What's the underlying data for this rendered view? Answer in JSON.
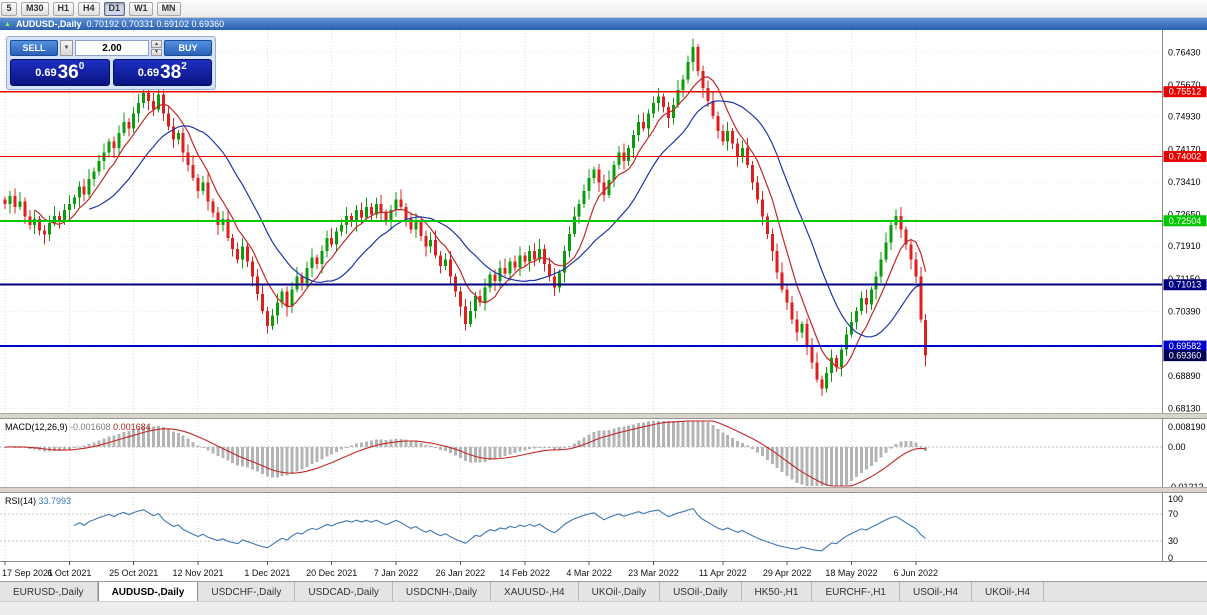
{
  "toolbar": {
    "timeframes": [
      {
        "label": "5",
        "active": false
      },
      {
        "label": "M30",
        "active": false
      },
      {
        "label": "H1",
        "active": false
      },
      {
        "label": "H4",
        "active": false
      },
      {
        "label": "D1",
        "active": true
      },
      {
        "label": "W1",
        "active": false
      },
      {
        "label": "MN",
        "active": false
      }
    ]
  },
  "chart_window": {
    "symbol_title": "AUDUSD-,Daily",
    "ohlc": "0.70192 0.70331 0.69102 0.69360"
  },
  "trade_widget": {
    "sell_label": "SELL",
    "buy_label": "BUY",
    "volume": "2.00",
    "bid": {
      "small": "0.69",
      "big": "36",
      "sup": "0"
    },
    "ask": {
      "small": "0.69",
      "big": "38",
      "sup": "2"
    }
  },
  "indicator_titles": {
    "macd_name": "MACD(12,26,9)",
    "macd_value1": "-0.001608",
    "macd_value2": "0.001684",
    "rsi_name": "RSI(14)",
    "rsi_value": "33.7993"
  },
  "chart_data": {
    "type": "candlestick",
    "title": "AUDUSD-,Daily",
    "ylim": [
      0.68,
      0.7695
    ],
    "y_ticks": [
      {
        "price": 0.7643,
        "label": "0.76430"
      },
      {
        "price": 0.7567,
        "label": "0.75670"
      },
      {
        "price": 0.7493,
        "label": "0.74930"
      },
      {
        "price": 0.7417,
        "label": "0.74170"
      },
      {
        "price": 0.7341,
        "label": "0.73410"
      },
      {
        "price": 0.7265,
        "label": "0.72650"
      },
      {
        "price": 0.7191,
        "label": "0.71910"
      },
      {
        "price": 0.7115,
        "label": "0.71150"
      },
      {
        "price": 0.7039,
        "label": "0.70390"
      },
      {
        "price": 0.6963,
        "label": "0.69630"
      },
      {
        "price": 0.6889,
        "label": "0.68890"
      },
      {
        "price": 0.6813,
        "label": "0.68130"
      }
    ],
    "x_ticks": [
      {
        "index": 0,
        "label": "17 Sep 2021"
      },
      {
        "index": 13,
        "label": "6 Oct 2021"
      },
      {
        "index": 26,
        "label": "25 Oct 2021"
      },
      {
        "index": 39,
        "label": "12 Nov 2021"
      },
      {
        "index": 53,
        "label": "1 Dec 2021"
      },
      {
        "index": 66,
        "label": "20 Dec 2021"
      },
      {
        "index": 79,
        "label": "7 Jan 2022"
      },
      {
        "index": 92,
        "label": "26 Jan 2022"
      },
      {
        "index": 105,
        "label": "14 Feb 2022"
      },
      {
        "index": 118,
        "label": "4 Mar 2022"
      },
      {
        "index": 131,
        "label": "23 Mar 2022"
      },
      {
        "index": 145,
        "label": "11 Apr 2022"
      },
      {
        "index": 158,
        "label": "29 Apr 2022"
      },
      {
        "index": 171,
        "label": "18 May 2022"
      },
      {
        "index": 184,
        "label": "6 Jun 2022"
      }
    ],
    "first_open": 0.73,
    "closes": [
      0.729,
      0.7308,
      0.7282,
      0.7295,
      0.726,
      0.724,
      0.7254,
      0.7228,
      0.7218,
      0.7245,
      0.7262,
      0.725,
      0.7275,
      0.729,
      0.7305,
      0.733,
      0.7312,
      0.7348,
      0.7365,
      0.739,
      0.741,
      0.7435,
      0.742,
      0.7455,
      0.748,
      0.7465,
      0.75,
      0.7525,
      0.7548,
      0.753,
      0.751,
      0.7545,
      0.75,
      0.747,
      0.744,
      0.7455,
      0.741,
      0.738,
      0.735,
      0.732,
      0.734,
      0.7295,
      0.727,
      0.724,
      0.7255,
      0.721,
      0.7185,
      0.716,
      0.719,
      0.7155,
      0.712,
      0.708,
      0.704,
      0.7005,
      0.703,
      0.706,
      0.7085,
      0.705,
      0.709,
      0.712,
      0.7105,
      0.714,
      0.7165,
      0.715,
      0.718,
      0.721,
      0.7195,
      0.7225,
      0.724,
      0.7262,
      0.7248,
      0.7275,
      0.7258,
      0.7282,
      0.7265,
      0.729,
      0.727,
      0.7252,
      0.7275,
      0.73,
      0.7282,
      0.7255,
      0.723,
      0.7248,
      0.7215,
      0.719,
      0.7205,
      0.717,
      0.7145,
      0.716,
      0.712,
      0.7085,
      0.705,
      0.701,
      0.704,
      0.7075,
      0.706,
      0.7095,
      0.7125,
      0.711,
      0.714,
      0.7128,
      0.7155,
      0.7142,
      0.717,
      0.7155,
      0.718,
      0.716,
      0.7185,
      0.715,
      0.712,
      0.7095,
      0.713,
      0.718,
      0.722,
      0.726,
      0.729,
      0.732,
      0.735,
      0.737,
      0.734,
      0.731,
      0.7345,
      0.738,
      0.741,
      0.739,
      0.742,
      0.745,
      0.748,
      0.7465,
      0.75,
      0.7525,
      0.754,
      0.7515,
      0.749,
      0.752,
      0.7555,
      0.758,
      0.762,
      0.7655,
      0.76,
      0.756,
      0.753,
      0.7495,
      0.746,
      0.7435,
      0.746,
      0.743,
      0.74,
      0.742,
      0.738,
      0.734,
      0.73,
      0.726,
      0.722,
      0.718,
      0.713,
      0.709,
      0.706,
      0.702,
      0.699,
      0.701,
      0.696,
      0.692,
      0.688,
      0.686,
      0.6895,
      0.693,
      0.691,
      0.695,
      0.6985,
      0.7015,
      0.704,
      0.707,
      0.7055,
      0.709,
      0.712,
      0.716,
      0.72,
      0.724,
      0.7262,
      0.723,
      0.7195,
      0.716,
      0.712,
      0.702,
      0.6936
    ],
    "last_candle": {
      "open": 0.70192,
      "high": 0.70331,
      "low": 0.69102,
      "close": 0.6936
    },
    "candle_colors": {
      "up": "#0c9b0c",
      "down": "#dc2020"
    },
    "moving_averages": [
      {
        "period": 7,
        "color": "#c02828"
      },
      {
        "period": 18,
        "color": "#1f35a8"
      }
    ],
    "horizontal_lines": [
      {
        "price": 0.75512,
        "label": "0.75512",
        "color": "#e60000",
        "width": 1.3
      },
      {
        "price": 0.74002,
        "label": "0.74002",
        "color": "#e60000",
        "width": 1.3
      },
      {
        "price": 0.72504,
        "label": "0.72504",
        "color": "#00c800",
        "width": 2
      },
      {
        "price": 0.71013,
        "label": "0.71013",
        "color": "#000080",
        "width": 2
      },
      {
        "price": 0.69582,
        "label": "0.69582",
        "color": "#0000cc",
        "width": 2
      }
    ],
    "bid_tag": {
      "price": 0.6936,
      "label": "0.69360",
      "color": "#000050"
    },
    "indicators": [
      {
        "type": "macd",
        "params": [
          12,
          26,
          9
        ],
        "range": [
          -0.01212,
          0.00819
        ],
        "axis_labels": [
          {
            "value": 0.00819,
            "label": "0.008190"
          },
          {
            "value": 0,
            "label": "0.00"
          },
          {
            "value": -0.01212,
            "label": "-0.01212"
          }
        ],
        "histogram_color": "#b4b4b4",
        "signal_color": "#c02828"
      },
      {
        "type": "rsi",
        "period": 14,
        "range": [
          0,
          100
        ],
        "axis_labels": [
          {
            "value": 100,
            "label": "100"
          },
          {
            "value": 70,
            "label": "70"
          },
          {
            "value": 30,
            "label": "30"
          },
          {
            "value": 0,
            "label": "0"
          }
        ],
        "levels": [
          70,
          30
        ],
        "line_color": "#3c78b4"
      }
    ]
  },
  "tabs": [
    {
      "label": "EURUSD-,Daily",
      "active": false
    },
    {
      "label": "AUDUSD-,Daily",
      "active": true
    },
    {
      "label": "USDCHF-,Daily",
      "active": false
    },
    {
      "label": "USDCAD-,Daily",
      "active": false
    },
    {
      "label": "USDCNH-,Daily",
      "active": false
    },
    {
      "label": "XAUUSD-,H4",
      "active": false
    },
    {
      "label": "UKOil-,Daily",
      "active": false
    },
    {
      "label": "USOil-,Daily",
      "active": false
    },
    {
      "label": "HK50-,H1",
      "active": false
    },
    {
      "label": "EURCHF-,H1",
      "active": false
    },
    {
      "label": "USOil-,H4",
      "active": false
    },
    {
      "label": "UKOil-,H4",
      "active": false
    }
  ]
}
